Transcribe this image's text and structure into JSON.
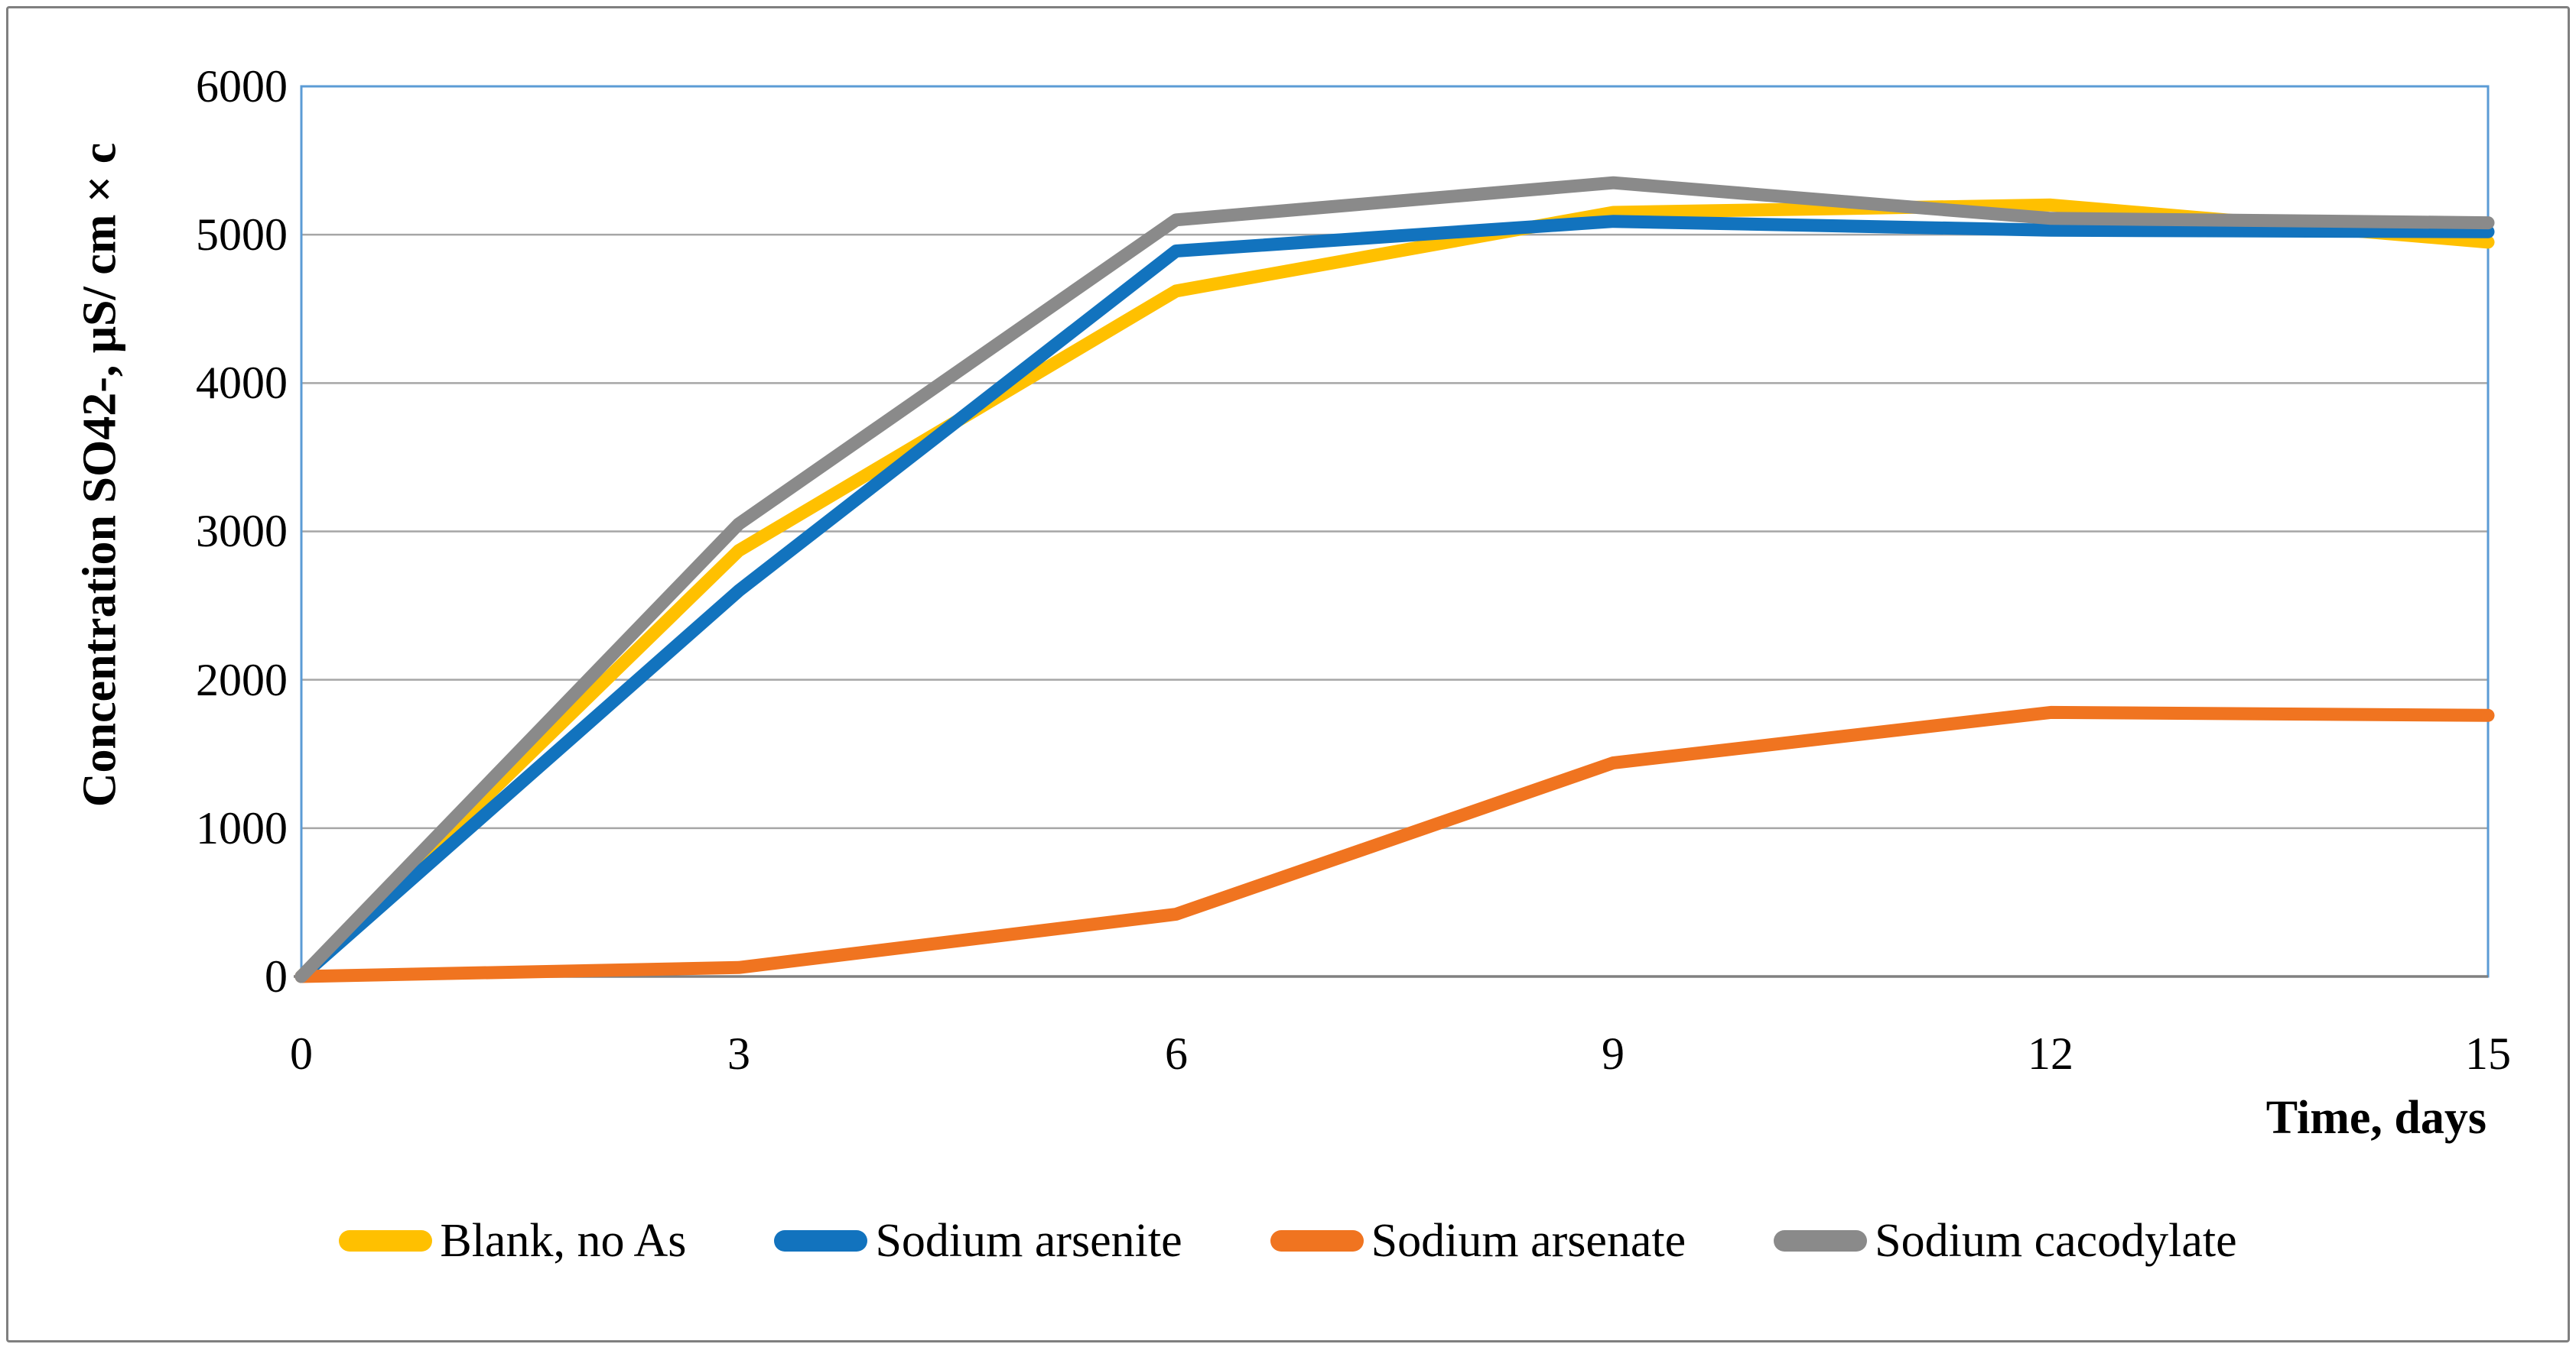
{
  "figure": {
    "background": "#ffffff",
    "frame_color": "#7f7f7f",
    "plot_border_color": "#5b9bd5",
    "gridline_color": "#a6a6a6",
    "axis_line_color": "#808080"
  },
  "chart_data": {
    "type": "line",
    "title": "",
    "xlabel": "Time, days",
    "ylabel": "Concentration SO42-, μS/ cm × c",
    "x": [
      0,
      3,
      6,
      9,
      12,
      15
    ],
    "xticks": [
      "0",
      "3",
      "6",
      "9",
      "12",
      "15"
    ],
    "yticks": [
      "0",
      "1000",
      "2000",
      "3000",
      "4000",
      "5000",
      "6000"
    ],
    "xlim": [
      0,
      15
    ],
    "ylim": [
      0,
      6000
    ],
    "grid": "horizontal",
    "legend_position": "bottom",
    "series": [
      {
        "name": "Blank, no As",
        "color": "#FFC000",
        "values": [
          0,
          2870,
          4620,
          5150,
          5200,
          4950
        ]
      },
      {
        "name": "Sodium arsenite",
        "color": "#1273BE",
        "values": [
          0,
          2600,
          4890,
          5090,
          5030,
          5020
        ]
      },
      {
        "name": "Sodium arsenate",
        "color": "#F07420",
        "values": [
          0,
          60,
          420,
          1440,
          1780,
          1760
        ]
      },
      {
        "name": "Sodium cacodylate",
        "color": "#8A8A8A",
        "values": [
          0,
          3050,
          5100,
          5350,
          5110,
          5080
        ]
      }
    ]
  }
}
